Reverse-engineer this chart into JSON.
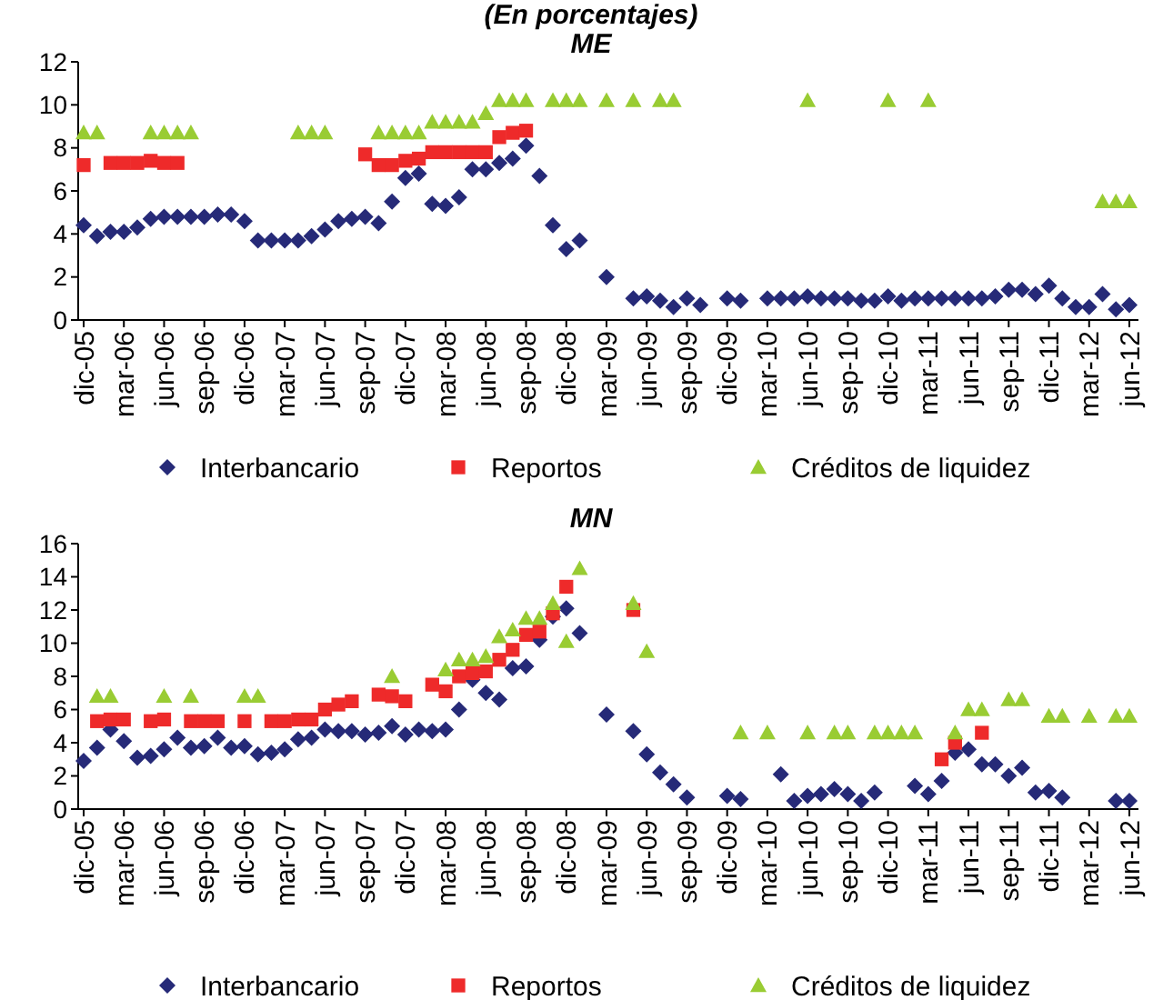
{
  "chart_data": [
    {
      "type": "scatter",
      "title": "ME",
      "annotations": [
        "(En porcentajes)"
      ],
      "legend": "bottom",
      "ylim": [
        0,
        12
      ],
      "yticks": [
        0,
        2,
        4,
        6,
        8,
        10,
        12
      ],
      "categories": [
        "dic-05",
        null,
        null,
        "mar-06",
        null,
        null,
        "jun-06",
        null,
        null,
        "sep-06",
        null,
        null,
        "dic-06",
        null,
        null,
        "mar-07",
        null,
        null,
        "jun-07",
        null,
        null,
        "sep-07",
        null,
        null,
        "dic-07",
        null,
        null,
        "mar-08",
        null,
        null,
        "jun-08",
        null,
        null,
        "sep-08",
        null,
        null,
        "dic-08",
        null,
        null,
        "mar-09",
        null,
        null,
        "jun-09",
        null,
        null,
        "sep-09",
        null,
        null,
        "dic-09",
        null,
        null,
        "mar-10",
        null,
        null,
        "jun-10",
        null,
        null,
        "sep-10",
        null,
        null,
        "dic-10",
        null,
        null,
        "mar-11",
        null,
        null,
        "jun-11",
        null,
        null,
        "sep-11",
        null,
        null,
        "dic-11",
        null,
        null,
        "mar-12",
        null,
        null,
        "jun-12"
      ],
      "series": [
        {
          "name": "Interbancario",
          "type": "scatter",
          "marker": "diamond",
          "color": "#262a78",
          "values": [
            4.4,
            3.9,
            4.1,
            4.1,
            4.3,
            4.7,
            4.8,
            4.8,
            4.8,
            4.8,
            4.9,
            4.9,
            4.6,
            3.7,
            3.7,
            3.7,
            3.7,
            3.9,
            4.2,
            4.6,
            4.7,
            4.8,
            4.5,
            5.5,
            6.6,
            6.8,
            5.4,
            5.3,
            5.7,
            7.0,
            7.0,
            7.3,
            7.5,
            8.1,
            6.7,
            4.4,
            3.3,
            3.7,
            null,
            2.0,
            null,
            1.0,
            1.1,
            0.9,
            0.6,
            1.0,
            0.7,
            null,
            1.0,
            0.9,
            null,
            1.0,
            1.0,
            1.0,
            1.1,
            1.0,
            1.0,
            1.0,
            0.9,
            0.9,
            1.1,
            0.9,
            1.0,
            1.0,
            1.0,
            1.0,
            1.0,
            1.0,
            1.1,
            1.4,
            1.4,
            1.2,
            1.6,
            1.0,
            0.6,
            0.6,
            1.2,
            0.5,
            0.7
          ]
        },
        {
          "name": "Reportos",
          "type": "scatter",
          "marker": "square",
          "color": "#ee2a2a",
          "values": [
            7.2,
            null,
            7.3,
            7.3,
            7.3,
            7.4,
            7.3,
            7.3,
            null,
            null,
            null,
            null,
            null,
            null,
            null,
            null,
            null,
            null,
            null,
            null,
            null,
            7.7,
            7.2,
            7.2,
            7.4,
            7.5,
            7.8,
            7.8,
            7.8,
            7.8,
            7.8,
            8.5,
            8.7,
            8.8,
            null,
            null,
            null,
            null,
            null,
            null,
            null,
            null,
            null,
            null,
            null,
            null,
            null,
            null,
            null,
            null,
            null,
            null,
            null,
            null,
            null,
            null,
            null,
            null,
            null,
            null,
            null,
            null,
            null,
            null,
            null,
            null,
            null,
            null,
            null,
            null,
            null,
            null,
            null,
            null,
            null,
            null,
            null,
            null,
            null
          ]
        },
        {
          "name": "Créditos de liquidez",
          "type": "scatter",
          "marker": "triangle",
          "color": "#99cc33",
          "values": [
            8.7,
            8.7,
            null,
            null,
            null,
            8.7,
            8.7,
            8.7,
            8.7,
            null,
            null,
            null,
            null,
            null,
            null,
            null,
            8.7,
            8.7,
            8.7,
            null,
            null,
            null,
            8.7,
            8.7,
            8.7,
            8.7,
            9.2,
            9.2,
            9.2,
            9.2,
            9.6,
            10.2,
            10.2,
            10.2,
            null,
            10.2,
            10.2,
            10.2,
            null,
            10.2,
            null,
            10.2,
            null,
            10.2,
            10.2,
            null,
            null,
            null,
            null,
            null,
            null,
            null,
            null,
            null,
            10.2,
            null,
            null,
            null,
            null,
            null,
            10.2,
            null,
            null,
            10.2,
            null,
            null,
            null,
            null,
            null,
            null,
            null,
            null,
            null,
            null,
            null,
            null,
            5.5,
            5.5,
            5.5
          ]
        }
      ]
    },
    {
      "type": "scatter",
      "title": "MN",
      "legend": "bottom",
      "ylim": [
        0,
        16
      ],
      "yticks": [
        0,
        2,
        4,
        6,
        8,
        10,
        12,
        14,
        16
      ],
      "categories": [
        "dic-05",
        null,
        null,
        "mar-06",
        null,
        null,
        "jun-06",
        null,
        null,
        "sep-06",
        null,
        null,
        "dic-06",
        null,
        null,
        "mar-07",
        null,
        null,
        "jun-07",
        null,
        null,
        "sep-07",
        null,
        null,
        "dic-07",
        null,
        null,
        "mar-08",
        null,
        null,
        "jun-08",
        null,
        null,
        "sep-08",
        null,
        null,
        "dic-08",
        null,
        null,
        "mar-09",
        null,
        null,
        "jun-09",
        null,
        null,
        "sep-09",
        null,
        null,
        "dic-09",
        null,
        null,
        "mar-10",
        null,
        null,
        "jun-10",
        null,
        null,
        "sep-10",
        null,
        null,
        "dic-10",
        null,
        null,
        "mar-11",
        null,
        null,
        "jun-11",
        null,
        null,
        "sep-11",
        null,
        null,
        "dic-11",
        null,
        null,
        "mar-12",
        null,
        null,
        "jun-12"
      ],
      "series": [
        {
          "name": "Interbancario",
          "type": "scatter",
          "marker": "diamond",
          "color": "#262a78",
          "values": [
            2.9,
            3.7,
            4.8,
            4.1,
            3.1,
            3.2,
            3.6,
            4.3,
            3.7,
            3.8,
            4.3,
            3.7,
            3.8,
            3.3,
            3.4,
            3.6,
            4.2,
            4.3,
            4.8,
            4.7,
            4.7,
            4.5,
            4.6,
            5.0,
            4.5,
            4.8,
            4.7,
            4.8,
            6.0,
            7.8,
            7.0,
            6.6,
            8.5,
            8.6,
            10.2,
            11.6,
            12.1,
            10.6,
            null,
            5.7,
            null,
            4.7,
            3.3,
            2.2,
            1.5,
            0.7,
            null,
            null,
            0.8,
            0.6,
            null,
            null,
            2.1,
            0.5,
            0.8,
            0.9,
            1.2,
            0.9,
            0.5,
            1.0,
            null,
            null,
            1.4,
            0.9,
            1.7,
            3.4,
            3.6,
            2.7,
            2.7,
            2.0,
            2.5,
            1.0,
            1.1,
            0.7,
            null,
            null,
            null,
            0.5,
            0.5
          ]
        },
        {
          "name": "Reportos",
          "type": "scatter",
          "marker": "square",
          "color": "#ee2a2a",
          "values": [
            null,
            5.3,
            5.4,
            5.4,
            null,
            5.3,
            5.4,
            null,
            5.3,
            5.3,
            5.3,
            null,
            5.3,
            null,
            5.3,
            5.3,
            5.4,
            5.4,
            6.0,
            6.3,
            6.5,
            null,
            6.9,
            6.8,
            6.5,
            null,
            7.5,
            7.1,
            8.0,
            8.2,
            8.3,
            9.0,
            9.6,
            10.5,
            10.7,
            11.8,
            13.4,
            null,
            null,
            null,
            null,
            12.0,
            null,
            null,
            null,
            null,
            null,
            null,
            null,
            null,
            null,
            null,
            null,
            null,
            null,
            null,
            null,
            null,
            null,
            null,
            null,
            null,
            null,
            null,
            3.0,
            4.0,
            null,
            4.6,
            null,
            null,
            null,
            null,
            null,
            null,
            null,
            null,
            null,
            null,
            null
          ]
        },
        {
          "name": "Créditos de liquidez",
          "type": "scatter",
          "marker": "triangle",
          "color": "#99cc33",
          "values": [
            null,
            6.8,
            6.8,
            null,
            null,
            null,
            6.8,
            null,
            6.8,
            null,
            null,
            null,
            6.8,
            6.8,
            null,
            null,
            null,
            null,
            null,
            null,
            null,
            null,
            null,
            8.0,
            null,
            null,
            null,
            8.4,
            9.0,
            9.0,
            9.2,
            10.4,
            10.8,
            11.5,
            11.5,
            12.4,
            10.1,
            14.5,
            null,
            null,
            null,
            12.4,
            9.5,
            null,
            null,
            null,
            null,
            null,
            null,
            4.6,
            null,
            4.6,
            null,
            null,
            4.6,
            null,
            4.6,
            4.6,
            null,
            4.6,
            4.6,
            4.6,
            4.6,
            null,
            null,
            4.6,
            6.0,
            6.0,
            null,
            6.6,
            6.6,
            null,
            5.6,
            5.6,
            null,
            5.6,
            null,
            5.6,
            5.6
          ]
        }
      ]
    }
  ]
}
